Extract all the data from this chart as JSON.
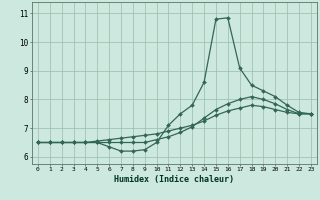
{
  "xlabel": "Humidex (Indice chaleur)",
  "background_color": "#cce8df",
  "grid_color": "#99bbaa",
  "line_color": "#336655",
  "xlim": [
    -0.5,
    23.5
  ],
  "ylim": [
    5.75,
    11.4
  ],
  "xticks": [
    0,
    1,
    2,
    3,
    4,
    5,
    6,
    7,
    8,
    9,
    10,
    11,
    12,
    13,
    14,
    15,
    16,
    17,
    18,
    19,
    20,
    21,
    22,
    23
  ],
  "yticks": [
    6,
    7,
    8,
    9,
    10,
    11
  ],
  "series1_x": [
    0,
    1,
    2,
    3,
    4,
    5,
    6,
    7,
    8,
    9,
    10,
    11,
    12,
    13,
    14,
    15,
    16,
    17,
    18,
    19,
    20,
    21,
    22,
    23
  ],
  "series1_y": [
    6.5,
    6.5,
    6.5,
    6.5,
    6.5,
    6.5,
    6.35,
    6.2,
    6.2,
    6.25,
    6.5,
    7.1,
    7.5,
    7.8,
    8.6,
    10.8,
    10.85,
    9.1,
    8.5,
    8.3,
    8.1,
    7.8,
    7.55,
    7.5
  ],
  "series2_x": [
    0,
    1,
    2,
    3,
    4,
    5,
    6,
    7,
    8,
    9,
    10,
    11,
    12,
    13,
    14,
    15,
    16,
    17,
    18,
    19,
    20,
    21,
    22,
    23
  ],
  "series2_y": [
    6.5,
    6.5,
    6.5,
    6.5,
    6.5,
    6.55,
    6.6,
    6.65,
    6.7,
    6.75,
    6.8,
    6.9,
    7.0,
    7.1,
    7.25,
    7.45,
    7.6,
    7.7,
    7.8,
    7.75,
    7.65,
    7.55,
    7.5,
    7.5
  ],
  "series3_x": [
    0,
    1,
    2,
    3,
    4,
    5,
    6,
    7,
    8,
    9,
    10,
    11,
    12,
    13,
    14,
    15,
    16,
    17,
    18,
    19,
    20,
    21,
    22,
    23
  ],
  "series3_y": [
    6.5,
    6.5,
    6.5,
    6.5,
    6.5,
    6.5,
    6.5,
    6.5,
    6.5,
    6.5,
    6.6,
    6.7,
    6.85,
    7.05,
    7.35,
    7.65,
    7.85,
    8.0,
    8.1,
    8.0,
    7.85,
    7.65,
    7.5,
    7.5
  ]
}
